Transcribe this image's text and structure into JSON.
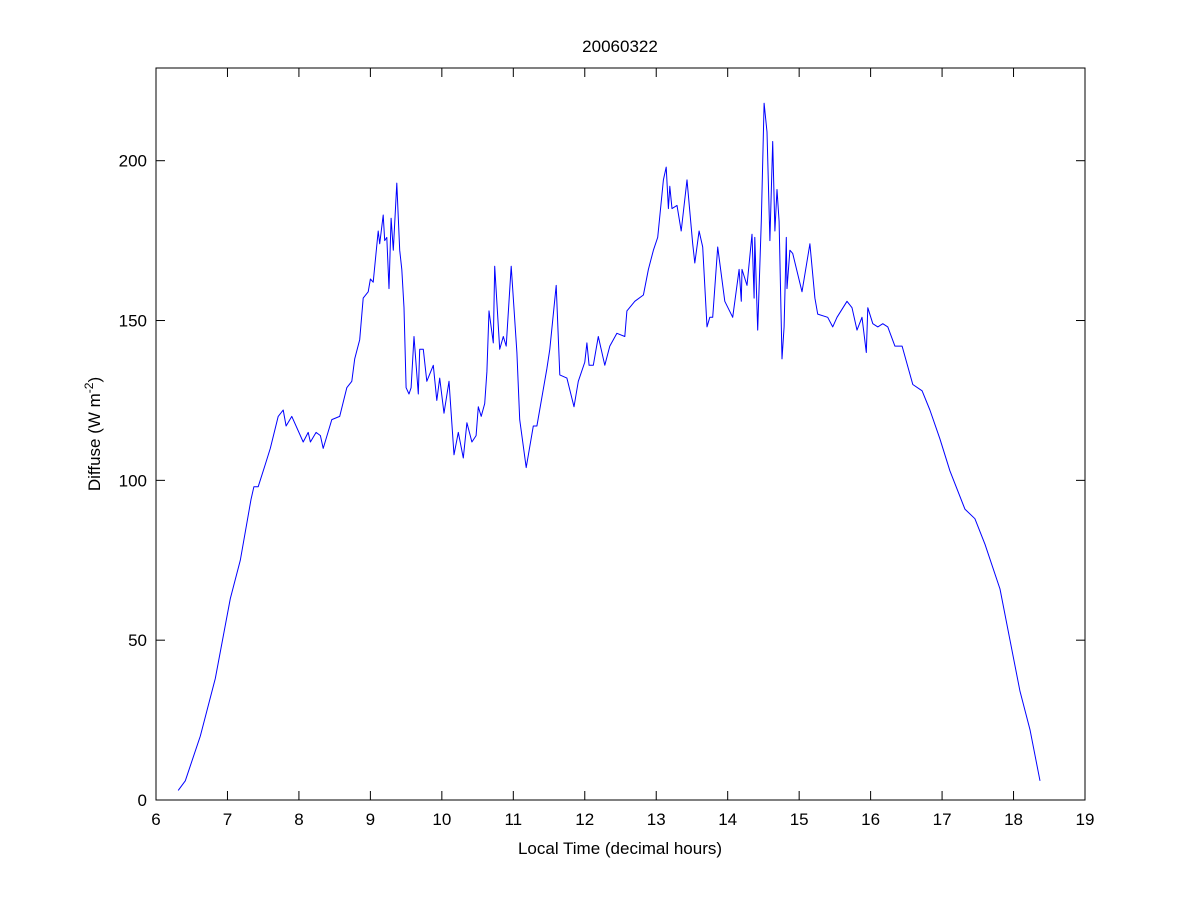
{
  "chart_data": {
    "type": "line",
    "title": "20060322",
    "xlabel": "Local Time (decimal hours)",
    "ylabel": "Diffuse (W m",
    "ylabel_sup": "-2",
    "ylabel_close": ")",
    "xlim": [
      6,
      19
    ],
    "ylim": [
      0,
      229
    ],
    "xticks": [
      6,
      7,
      8,
      9,
      10,
      11,
      12,
      13,
      14,
      15,
      16,
      17,
      18,
      19
    ],
    "yticks": [
      0,
      50,
      100,
      150,
      200
    ],
    "grid": false,
    "series": [
      {
        "name": "Diffuse",
        "color": "#0000ff",
        "x": [
          6.31,
          6.41,
          6.62,
          6.83,
          7.04,
          7.18,
          7.33,
          7.37,
          7.43,
          7.53,
          7.6,
          7.71,
          7.78,
          7.82,
          7.9,
          8.06,
          8.13,
          8.16,
          8.24,
          8.3,
          8.34,
          8.46,
          8.57,
          8.67,
          8.74,
          8.78,
          8.85,
          8.9,
          8.97,
          9.0,
          9.04,
          9.11,
          9.13,
          9.18,
          9.2,
          9.23,
          9.26,
          9.29,
          9.32,
          9.37,
          9.41,
          9.44,
          9.47,
          9.5,
          9.54,
          9.57,
          9.61,
          9.67,
          9.69,
          9.74,
          9.79,
          9.88,
          9.93,
          9.97,
          10.03,
          10.1,
          10.17,
          10.23,
          10.3,
          10.35,
          10.42,
          10.48,
          10.51,
          10.55,
          10.6,
          10.63,
          10.66,
          10.72,
          10.74,
          10.81,
          10.86,
          10.9,
          10.97,
          11.05,
          11.09,
          11.18,
          11.28,
          11.33,
          11.47,
          11.51,
          11.6,
          11.65,
          11.75,
          11.85,
          11.91,
          12.0,
          12.03,
          12.06,
          12.12,
          12.19,
          12.28,
          12.35,
          12.45,
          12.56,
          12.59,
          12.7,
          12.82,
          12.89,
          12.96,
          13.02,
          13.1,
          13.14,
          13.17,
          13.19,
          13.22,
          13.29,
          13.35,
          13.43,
          13.51,
          13.54,
          13.6,
          13.65,
          13.71,
          13.75,
          13.79,
          13.86,
          13.96,
          14.07,
          14.16,
          14.19,
          14.2,
          14.27,
          14.34,
          14.37,
          14.38,
          14.42,
          14.47,
          14.51,
          14.55,
          14.59,
          14.63,
          14.66,
          14.69,
          14.72,
          14.76,
          14.79,
          14.82,
          14.83,
          14.87,
          14.91,
          15.04,
          15.15,
          15.22,
          15.26,
          15.4,
          15.47,
          15.53,
          15.67,
          15.74,
          15.81,
          15.88,
          15.94,
          15.96,
          16.03,
          16.1,
          16.17,
          16.24,
          16.34,
          16.44,
          16.59,
          16.72,
          16.83,
          16.97,
          17.11,
          17.32,
          17.46,
          17.6,
          17.81,
          17.95,
          18.09,
          18.23,
          18.37
        ],
        "y": [
          3,
          6,
          20,
          38,
          63,
          75,
          94,
          98,
          98,
          105,
          110,
          120,
          122,
          117,
          120,
          112,
          115,
          112,
          115,
          114,
          110,
          119,
          120,
          129,
          131,
          138,
          144,
          157,
          159,
          163,
          162,
          178,
          174,
          183,
          175,
          176,
          160,
          182,
          172,
          193,
          172,
          166,
          154,
          129,
          127,
          129,
          145,
          127,
          141,
          141,
          131,
          136,
          125,
          132,
          121,
          131,
          108,
          115,
          107,
          118,
          112,
          114,
          123,
          120,
          124,
          134,
          153,
          143,
          167,
          141,
          145,
          142,
          167,
          140,
          119,
          104,
          117,
          117,
          135,
          141,
          161,
          133,
          132,
          123,
          131,
          137,
          143,
          136,
          136,
          145,
          136,
          142,
          146,
          145,
          153,
          156,
          158,
          166,
          172,
          176,
          194,
          198,
          185,
          192,
          185,
          186,
          178,
          194,
          174,
          168,
          178,
          173,
          148,
          151,
          151,
          173,
          156,
          151,
          166,
          156,
          166,
          161,
          177,
          157,
          176,
          147,
          181,
          218,
          209,
          175,
          206,
          178,
          191,
          181,
          138,
          148,
          176,
          160,
          172,
          171,
          159,
          174,
          157,
          152,
          151,
          148,
          151,
          156,
          154,
          147,
          151,
          140,
          154,
          149,
          148,
          149,
          148,
          142,
          142,
          130,
          128,
          122,
          113,
          103,
          91,
          88,
          80,
          66,
          50,
          34,
          22,
          6
        ]
      }
    ]
  }
}
